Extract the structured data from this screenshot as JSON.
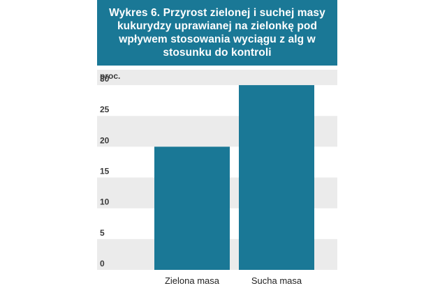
{
  "title": "Wykres 6. Przyrost zielonej i suchej masy kukurydzy uprawianej na zielonkę pod wpływem stosowania wyciągu z alg w stosunku do kontroli",
  "colors": {
    "title_bg": "#1a7896",
    "bar": "#1a7896",
    "band": "#ebebeb",
    "text": "#3a3a3a"
  },
  "chart_data": {
    "type": "bar",
    "title": "Wykres 6. Przyrost zielonej i suchej masy kukurydzy uprawianej na zielonkę pod wpływem stosowania wyciągu z alg w stosunku do kontroli",
    "unit_label": "proc.",
    "categories": [
      "Zielona masa",
      "Sucha masa"
    ],
    "values": [
      20,
      30
    ],
    "yticks": [
      "0",
      "5",
      "10",
      "15",
      "20",
      "25",
      "30"
    ],
    "ylim": [
      0,
      32.5
    ],
    "grid": "alternating horizontal bands"
  }
}
